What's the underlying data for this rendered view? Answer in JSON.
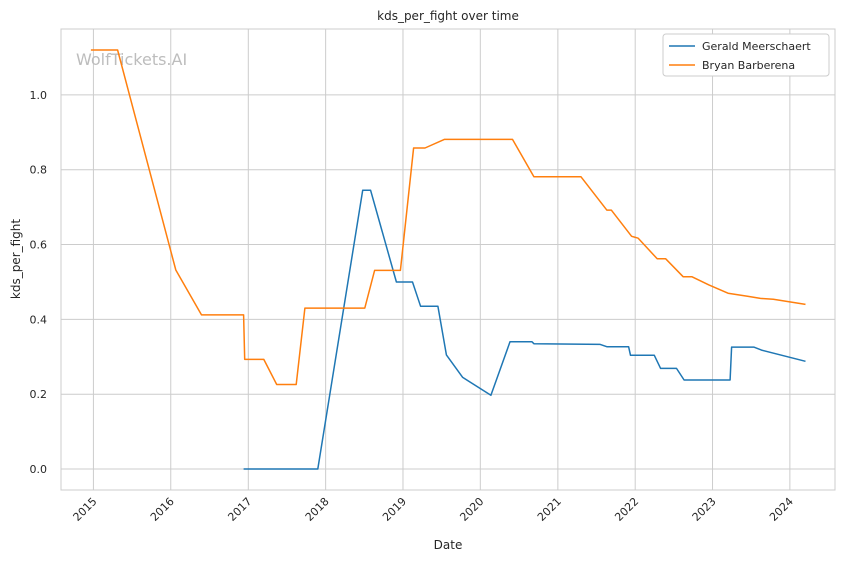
{
  "chart_data": {
    "type": "line",
    "title": "kds_per_fight over time",
    "xlabel": "Date",
    "ylabel": "kds_per_fight",
    "watermark": "WolfTickets.AI",
    "x_ticks": [
      "2015",
      "2016",
      "2017",
      "2018",
      "2019",
      "2020",
      "2021",
      "2022",
      "2023",
      "2024"
    ],
    "y_ticks": [
      "0.0",
      "0.2",
      "0.4",
      "0.6",
      "0.8",
      "1.0"
    ],
    "xlim": [
      "2014-08-01",
      "2024-08-01"
    ],
    "ylim": [
      -0.056,
      1.176
    ],
    "grid": true,
    "legend_position": "upper right",
    "series": [
      {
        "name": "Gerald Meerschaert",
        "color": "#1f77b4",
        "points": [
          [
            "2016-12-10",
            0.0
          ],
          [
            "2017-11-25",
            0.0
          ],
          [
            "2018-06-25",
            0.745
          ],
          [
            "2018-08-01",
            0.745
          ],
          [
            "2018-12-01",
            0.5
          ],
          [
            "2019-02-15",
            0.5
          ],
          [
            "2019-03-25",
            0.435
          ],
          [
            "2019-06-15",
            0.435
          ],
          [
            "2019-07-25",
            0.305
          ],
          [
            "2019-10-10",
            0.245
          ],
          [
            "2020-02-20",
            0.197
          ],
          [
            "2020-05-20",
            0.34
          ],
          [
            "2020-09-01",
            0.34
          ],
          [
            "2020-09-10",
            0.335
          ],
          [
            "2021-07-20",
            0.333
          ],
          [
            "2021-08-20",
            0.327
          ],
          [
            "2021-12-01",
            0.327
          ],
          [
            "2021-12-10",
            0.304
          ],
          [
            "2022-04-01",
            0.304
          ],
          [
            "2022-05-01",
            0.269
          ],
          [
            "2022-07-15",
            0.269
          ],
          [
            "2022-08-20",
            0.238
          ],
          [
            "2023-03-25",
            0.238
          ],
          [
            "2023-04-01",
            0.326
          ],
          [
            "2023-07-15",
            0.326
          ],
          [
            "2023-08-20",
            0.318
          ],
          [
            "2024-03-15",
            0.288
          ]
        ]
      },
      {
        "name": "Bryan Barberena",
        "color": "#ff7f0e",
        "points": [
          [
            "2014-12-20",
            1.12
          ],
          [
            "2015-04-25",
            1.12
          ],
          [
            "2016-01-25",
            0.532
          ],
          [
            "2016-05-25",
            0.412
          ],
          [
            "2016-12-10",
            0.412
          ],
          [
            "2016-12-15",
            0.293
          ],
          [
            "2017-03-15",
            0.293
          ],
          [
            "2017-05-15",
            0.226
          ],
          [
            "2017-08-15",
            0.226
          ],
          [
            "2017-09-25",
            0.43
          ],
          [
            "2018-07-05",
            0.43
          ],
          [
            "2018-08-20",
            0.531
          ],
          [
            "2018-12-20",
            0.531
          ],
          [
            "2019-02-20",
            0.858
          ],
          [
            "2019-04-15",
            0.858
          ],
          [
            "2019-07-15",
            0.881
          ],
          [
            "2020-06-01",
            0.881
          ],
          [
            "2020-09-10",
            0.781
          ],
          [
            "2021-04-20",
            0.781
          ],
          [
            "2021-08-20",
            0.692
          ],
          [
            "2021-09-10",
            0.692
          ],
          [
            "2021-12-15",
            0.622
          ],
          [
            "2022-01-15",
            0.617
          ],
          [
            "2022-04-15",
            0.562
          ],
          [
            "2022-05-25",
            0.562
          ],
          [
            "2022-08-15",
            0.514
          ],
          [
            "2022-09-25",
            0.514
          ],
          [
            "2022-12-15",
            0.492
          ],
          [
            "2023-03-15",
            0.47
          ],
          [
            "2023-06-15",
            0.462
          ],
          [
            "2023-08-15",
            0.456
          ],
          [
            "2023-10-15",
            0.454
          ],
          [
            "2024-03-15",
            0.44
          ]
        ]
      }
    ]
  }
}
